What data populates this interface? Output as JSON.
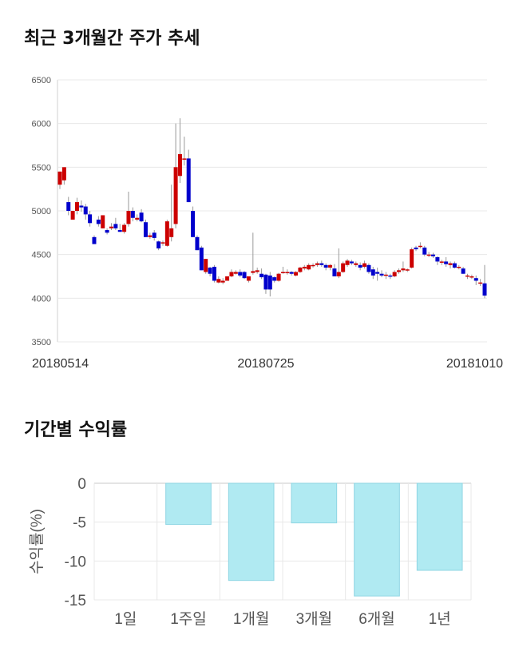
{
  "titles": {
    "price_trend": "최근 3개월간 주가 추세",
    "returns": "기간별 수익률"
  },
  "colors": {
    "up": "#cc0000",
    "down": "#0000cc",
    "bar_fill": "#b0eaf2",
    "bar_stroke": "#8fd6e3",
    "grid": "#e8e8e8"
  },
  "chart_data": [
    {
      "type": "candlestick",
      "title": "최근 3개월간 주가 추세",
      "ylim": [
        3500,
        6500
      ],
      "y_ticks": [
        6500,
        6000,
        5500,
        5000,
        4500,
        4000,
        3500
      ],
      "x_tick_labels": [
        {
          "index": 0,
          "label": "20180514"
        },
        {
          "index": 48,
          "label": "20180725"
        },
        {
          "index": 96,
          "label": "20181010"
        }
      ],
      "candles": [
        [
          5300,
          5450,
          5250,
          5450
        ],
        [
          5350,
          5500,
          5300,
          5500
        ],
        [
          5100,
          5160,
          4950,
          5000
        ],
        [
          4900,
          5000,
          4900,
          5000
        ],
        [
          5000,
          5150,
          4960,
          5100
        ],
        [
          5060,
          5120,
          4990,
          5040
        ],
        [
          5050,
          5080,
          4900,
          4960
        ],
        [
          4960,
          5000,
          4820,
          4860
        ],
        [
          4700,
          4720,
          4620,
          4620
        ],
        [
          4900,
          4940,
          4820,
          4850
        ],
        [
          4800,
          4950,
          4800,
          4950
        ],
        [
          4780,
          4800,
          4730,
          4750
        ],
        [
          4800,
          4860,
          4780,
          4820
        ],
        [
          4850,
          4920,
          4780,
          4800
        ],
        [
          4780,
          4850,
          4760,
          4760
        ],
        [
          4760,
          4860,
          4740,
          4840
        ],
        [
          4850,
          5220,
          4820,
          5000
        ],
        [
          5000,
          5040,
          4880,
          4920
        ],
        [
          4900,
          4960,
          4880,
          4920
        ],
        [
          4980,
          5020,
          4870,
          4880
        ],
        [
          4870,
          4900,
          4700,
          4700
        ],
        [
          4700,
          4750,
          4680,
          4720
        ],
        [
          4750,
          4780,
          4660,
          4690
        ],
        [
          4650,
          4660,
          4550,
          4570
        ],
        [
          4640,
          4660,
          4600,
          4640
        ],
        [
          4600,
          4900,
          4590,
          4880
        ],
        [
          4700,
          5300,
          4650,
          4800
        ],
        [
          4850,
          6000,
          4800,
          5500
        ],
        [
          5400,
          6060,
          5320,
          5650
        ],
        [
          5600,
          5850,
          5520,
          5600
        ],
        [
          5600,
          5700,
          5100,
          5100
        ],
        [
          5000,
          5050,
          4700,
          4700
        ],
        [
          4700,
          4720,
          4550,
          4550
        ],
        [
          4580,
          4600,
          4320,
          4320
        ],
        [
          4300,
          4450,
          4280,
          4450
        ],
        [
          4350,
          4360,
          4250,
          4280
        ],
        [
          4360,
          4380,
          4180,
          4200
        ],
        [
          4180,
          4250,
          4170,
          4220
        ],
        [
          4180,
          4230,
          4160,
          4200
        ],
        [
          4200,
          4250,
          4200,
          4250
        ],
        [
          4250,
          4330,
          4240,
          4300
        ],
        [
          4280,
          4320,
          4270,
          4300
        ],
        [
          4300,
          4330,
          4240,
          4260
        ],
        [
          4300,
          4310,
          4220,
          4230
        ],
        [
          4200,
          4240,
          4180,
          4250
        ],
        [
          4290,
          4750,
          4270,
          4310
        ],
        [
          4300,
          4350,
          4280,
          4320
        ],
        [
          4280,
          4340,
          4220,
          4240
        ],
        [
          4270,
          4280,
          4050,
          4100
        ],
        [
          4260,
          4300,
          4020,
          4100
        ],
        [
          4240,
          4250,
          4180,
          4200
        ],
        [
          4200,
          4290,
          4190,
          4280
        ],
        [
          4300,
          4360,
          4280,
          4300
        ],
        [
          4290,
          4330,
          4270,
          4300
        ],
        [
          4300,
          4310,
          4260,
          4280
        ],
        [
          4260,
          4310,
          4250,
          4300
        ],
        [
          4300,
          4360,
          4290,
          4350
        ],
        [
          4340,
          4380,
          4320,
          4360
        ],
        [
          4330,
          4400,
          4320,
          4380
        ],
        [
          4370,
          4400,
          4350,
          4380
        ],
        [
          4380,
          4420,
          4360,
          4400
        ],
        [
          4400,
          4430,
          4360,
          4380
        ],
        [
          4380,
          4400,
          4320,
          4350
        ],
        [
          4350,
          4390,
          4320,
          4380
        ],
        [
          4340,
          4390,
          4250,
          4250
        ],
        [
          4250,
          4570,
          4230,
          4300
        ],
        [
          4300,
          4420,
          4290,
          4400
        ],
        [
          4380,
          4450,
          4360,
          4430
        ],
        [
          4420,
          4440,
          4380,
          4400
        ],
        [
          4380,
          4420,
          4360,
          4400
        ],
        [
          4380,
          4410,
          4320,
          4350
        ],
        [
          4360,
          4430,
          4340,
          4400
        ],
        [
          4380,
          4400,
          4280,
          4300
        ],
        [
          4330,
          4360,
          4220,
          4260
        ],
        [
          4300,
          4350,
          4200,
          4280
        ],
        [
          4280,
          4320,
          4240,
          4260
        ],
        [
          4260,
          4300,
          4220,
          4270
        ],
        [
          4260,
          4280,
          4220,
          4250
        ],
        [
          4250,
          4320,
          4240,
          4300
        ],
        [
          4300,
          4340,
          4280,
          4320
        ],
        [
          4320,
          4420,
          4300,
          4340
        ],
        [
          4320,
          4340,
          4300,
          4330
        ],
        [
          4350,
          4580,
          4340,
          4560
        ],
        [
          4580,
          4600,
          4540,
          4560
        ],
        [
          4600,
          4640,
          4570,
          4600
        ],
        [
          4580,
          4600,
          4480,
          4500
        ],
        [
          4500,
          4530,
          4470,
          4500
        ],
        [
          4500,
          4520,
          4460,
          4480
        ],
        [
          4470,
          4480,
          4380,
          4420
        ],
        [
          4420,
          4440,
          4380,
          4420
        ],
        [
          4420,
          4470,
          4360,
          4390
        ],
        [
          4380,
          4420,
          4340,
          4400
        ],
        [
          4400,
          4420,
          4340,
          4350
        ],
        [
          4350,
          4380,
          4330,
          4360
        ],
        [
          4340,
          4360,
          4280,
          4280
        ],
        [
          4260,
          4280,
          4220,
          4260
        ],
        [
          4250,
          4270,
          4220,
          4250
        ],
        [
          4230,
          4260,
          4150,
          4200
        ],
        [
          4180,
          4220,
          4140,
          4180
        ],
        [
          4170,
          4380,
          4000,
          4030
        ]
      ]
    },
    {
      "type": "bar",
      "title": "기간별 수익률",
      "ylabel": "수익률(%)",
      "ylim": [
        -15,
        0
      ],
      "y_ticks": [
        0,
        -5,
        -10,
        -15
      ],
      "categories": [
        "1일",
        "1주일",
        "1개월",
        "3개월",
        "6개월",
        "1년"
      ],
      "values": [
        0,
        -5.3,
        -12.5,
        -5.1,
        -14.5,
        -11.2
      ]
    }
  ]
}
